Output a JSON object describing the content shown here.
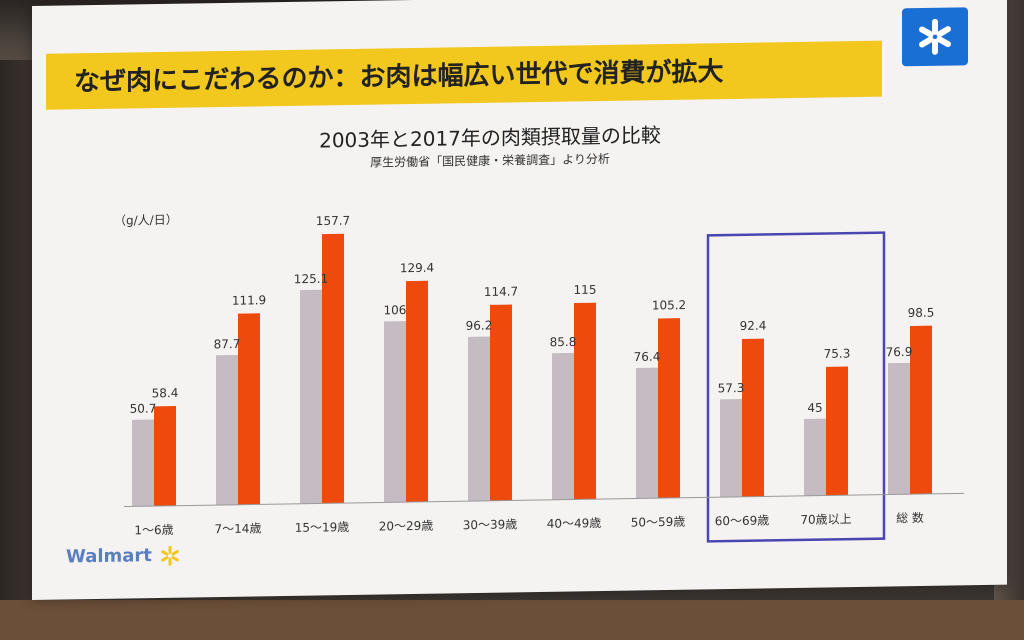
{
  "slide": {
    "heading": "なぜ肉にこだわるのか：お肉は幅広い世代で消費が拡大",
    "brand_logo_text": "Walmart",
    "spark_icon": "walmart-spark-icon",
    "colors": {
      "heading_bar": "#f2c81e",
      "logo_box": "#1a6fd4",
      "spark": "#f2c81e",
      "highlight_box": "#4a46b0"
    }
  },
  "chart_data": {
    "type": "bar",
    "title": "2003年と2017年の肉類摂取量の比較",
    "subtitle": "厚生労働省「国民健康・栄養調査」より分析",
    "ylabel": "（g/人/日）",
    "xlabel": "",
    "ylim": [
      0,
      175
    ],
    "grid": false,
    "categories": [
      "1～6歳",
      "7～14歳",
      "15～19歳",
      "20～29歳",
      "30～39歳",
      "40～49歳",
      "50～59歳",
      "60～69歳",
      "70歳以上",
      "総 数"
    ],
    "series": [
      {
        "color": "#c4bcc2",
        "values": [
          50.7,
          87.7,
          125.1,
          106,
          96.2,
          85.8,
          76.4,
          57.3,
          45,
          76.9
        ],
        "labels": [
          "50.7",
          "87.7",
          "125.1",
          "106",
          "96.2",
          "85.8",
          "76.4",
          "57.3",
          "45",
          "76.9"
        ]
      },
      {
        "color": "#ee4a0e",
        "values": [
          58.4,
          111.9,
          157.7,
          129.4,
          114.7,
          115,
          105.2,
          92.4,
          75.3,
          98.5
        ],
        "labels": [
          "58.4",
          "111.9",
          "157.7",
          "129.4",
          "114.7",
          "115",
          "105.2",
          "92.4",
          "75.3",
          "98.5"
        ]
      }
    ],
    "highlight_categories": [
      "60～69歳",
      "70歳以上"
    ]
  }
}
